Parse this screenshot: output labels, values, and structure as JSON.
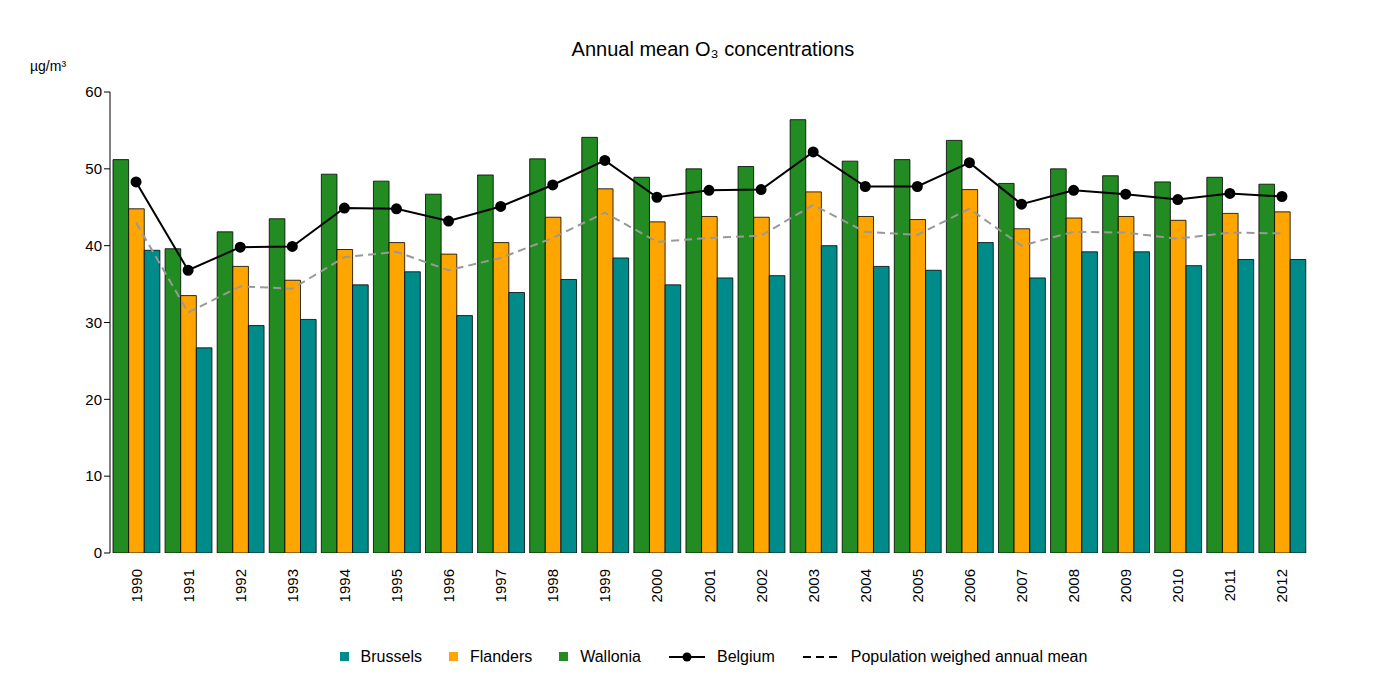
{
  "chart_data": {
    "type": "bar",
    "title": "Annual mean O₃ concentrations",
    "y_label": "µg/m³",
    "categories": [
      "1990",
      "1991",
      "1992",
      "1993",
      "1994",
      "1995",
      "1996",
      "1997",
      "1998",
      "1999",
      "2000",
      "2001",
      "2002",
      "2003",
      "2004",
      "2005",
      "2006",
      "2007",
      "2008",
      "2009",
      "2010",
      "2011",
      "2012"
    ],
    "series": [
      {
        "name": "Brussels",
        "type": "bar",
        "color": "#008B8B",
        "values": [
          39.4,
          26.7,
          29.6,
          30.4,
          34.9,
          36.6,
          30.9,
          33.9,
          35.6,
          38.4,
          34.9,
          35.8,
          36.1,
          40.0,
          37.3,
          36.8,
          40.4,
          35.8,
          39.2,
          39.2,
          37.4,
          38.2,
          38.2
        ]
      },
      {
        "name": "Flanders",
        "type": "bar",
        "color": "#FFA500",
        "values": [
          44.8,
          33.5,
          37.3,
          35.5,
          39.5,
          40.4,
          38.9,
          40.4,
          43.7,
          47.4,
          43.1,
          43.8,
          43.7,
          47.0,
          43.8,
          43.4,
          47.3,
          42.2,
          43.6,
          43.8,
          43.3,
          44.2,
          44.4
        ]
      },
      {
        "name": "Wallonia",
        "type": "bar",
        "color": "#228B22",
        "values": [
          51.2,
          39.6,
          41.8,
          43.5,
          49.3,
          48.4,
          46.7,
          49.2,
          51.3,
          54.1,
          48.9,
          50.0,
          50.3,
          56.4,
          51.0,
          51.2,
          53.7,
          48.1,
          50.0,
          49.1,
          48.3,
          48.9,
          48.0
        ]
      },
      {
        "name": "Belgium",
        "type": "line",
        "color": "#000000",
        "marker": "circle",
        "line_style": "solid",
        "values": [
          48.3,
          36.8,
          39.8,
          39.9,
          44.9,
          44.8,
          43.2,
          45.1,
          47.9,
          51.1,
          46.3,
          47.2,
          47.3,
          52.2,
          47.7,
          47.7,
          50.8,
          45.4,
          47.2,
          46.7,
          46.0,
          46.8,
          46.4
        ]
      },
      {
        "name": "Population weighed annual mean",
        "type": "line",
        "color": "#999999",
        "marker": "none",
        "line_style": "dashed",
        "values": [
          43.0,
          31.3,
          34.7,
          34.4,
          38.5,
          39.2,
          36.8,
          38.4,
          41.0,
          44.3,
          40.5,
          41.0,
          41.3,
          45.3,
          41.8,
          41.4,
          44.8,
          40.0,
          41.8,
          41.7,
          40.9,
          41.7,
          41.6
        ]
      }
    ],
    "ylim": [
      0,
      60
    ],
    "yticks": [
      0,
      10,
      20,
      30,
      40,
      50,
      60
    ],
    "grid": false,
    "legend": "bottom"
  }
}
